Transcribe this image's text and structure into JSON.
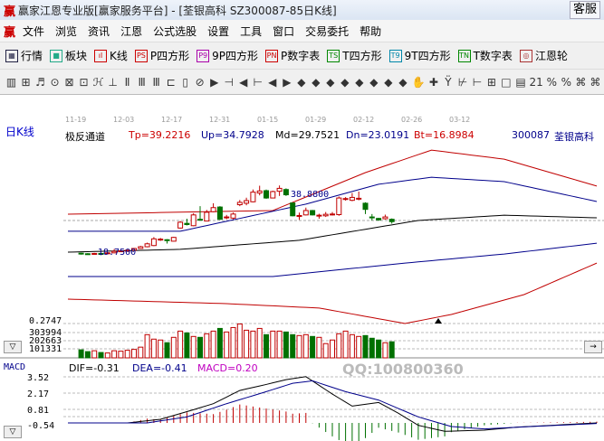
{
  "window": {
    "logo": "赢",
    "title": "赢家江恩专业版[赢家服务平台] - [荃银高科  SZ300087-85日K线]",
    "kefu": "客服"
  },
  "menu": [
    "文件",
    "浏览",
    "资讯",
    "江恩",
    "公式选股",
    "设置",
    "工具",
    "窗口",
    "交易委托",
    "帮助"
  ],
  "toolbar1": [
    {
      "icon": "market-icon",
      "glyph": "▦",
      "label": "行情",
      "color": "#224"
    },
    {
      "icon": "sector-icon",
      "glyph": "■",
      "label": "板块",
      "color": "#2a8"
    },
    {
      "icon": "kline-icon",
      "glyph": "ıl",
      "label": "K线",
      "color": "#c00"
    },
    {
      "icon": "ps-icon",
      "glyph": "PS",
      "label": "P四方形",
      "color": "#c00"
    },
    {
      "icon": "p9-icon",
      "glyph": "P9",
      "label": "9P四方形",
      "color": "#a0a"
    },
    {
      "icon": "pn-icon",
      "glyph": "PN",
      "label": "P数字表",
      "color": "#c00"
    },
    {
      "icon": "ts-icon",
      "glyph": "TS",
      "label": "T四方形",
      "color": "#080"
    },
    {
      "icon": "t9-icon",
      "glyph": "T9",
      "label": "9T四方形",
      "color": "#08a"
    },
    {
      "icon": "tn-icon",
      "glyph": "TN",
      "label": "T数字表",
      "color": "#080"
    },
    {
      "icon": "gann-wheel-icon",
      "glyph": "◎",
      "label": "江恩轮",
      "color": "#a33"
    }
  ],
  "toolbar2": [
    "▥",
    "⊞",
    "♬",
    "⊙",
    "⊠",
    "⊡",
    "ℋ",
    "⊥",
    "Ⅱ",
    "Ⅲ",
    "Ⅲ",
    "⊏",
    "▯",
    "⊘",
    "▶",
    "⊣",
    "◀",
    "⊢",
    "◀",
    "▶",
    "◆",
    "◆",
    "◆",
    "◆",
    "◆",
    "◆",
    "◆",
    "◆",
    "✋",
    "✚",
    "Ÿ",
    "⊬",
    "⊢",
    "⊞",
    "□",
    "▤",
    "21",
    "%",
    "%",
    "⌘",
    "⌘"
  ],
  "chart": {
    "period": "日K线",
    "dates": [
      "11-19",
      "12-03",
      "12-17",
      "12-31",
      "01-15",
      "01-29",
      "02-12",
      "02-26",
      "03-12"
    ],
    "indicator": {
      "name": "极反通道",
      "tp": "Tp=39.2216",
      "up": "Up=34.7928",
      "md": "Md=29.7521",
      "dn": "Dn=23.0191",
      "bt": "Bt=16.8984"
    },
    "code": "300087",
    "stock": "荃银高科",
    "high_label": "38.8800",
    "low_label": "18.7500",
    "volume_labels": [
      "0.2747",
      "303994",
      "202663",
      "101331"
    ],
    "macd": {
      "name": "MACD",
      "dif": "DIF=-0.31",
      "dea": "DEA=-0.41",
      "macd": "MACD=0.20",
      "ticks": [
        "3.52",
        "2.17",
        "0.81",
        "-0.54"
      ]
    },
    "watermark": "QQ:100800360",
    "colors": {
      "up": "#c00000",
      "down": "#007000",
      "tp": "#c00000",
      "up_band": "#00008b",
      "md": "#000000",
      "dn": "#00008b",
      "bt": "#c00000",
      "dif": "#000000",
      "dea": "#00008b",
      "macd_label": "#c000c0"
    }
  },
  "chart_data": {
    "type": "candlestick",
    "candles_ohlc": [
      [
        18.4,
        18.1,
        18.6,
        17.9
      ],
      [
        18.2,
        18.0,
        18.4,
        17.9
      ],
      [
        18.1,
        18.3,
        18.5,
        18.0
      ],
      [
        18.3,
        18.2,
        18.4,
        17.7
      ],
      [
        18.2,
        18.5,
        18.7,
        18.0
      ],
      [
        18.5,
        19.0,
        19.8,
        18.4
      ],
      [
        19.0,
        19.2,
        19.5,
        18.9
      ],
      [
        19.2,
        19.4,
        19.6,
        19.1
      ],
      [
        19.4,
        20.0,
        20.2,
        19.3
      ],
      [
        20.0,
        20.6,
        20.9,
        19.9
      ],
      [
        20.6,
        21.6,
        22.0,
        20.4
      ],
      [
        21.0,
        23.3,
        23.9,
        20.8
      ],
      [
        23.0,
        23.2,
        23.6,
        22.6
      ],
      [
        23.0,
        22.7,
        23.2,
        21.7
      ],
      [
        22.5,
        23.8,
        24.0,
        22.4
      ],
      [
        27.0,
        29.0,
        29.4,
        26.8
      ],
      [
        28.6,
        28.2,
        30.2,
        27.9
      ],
      [
        27.8,
        31.5,
        32.1,
        27.6
      ],
      [
        30.0,
        29.9,
        34.5,
        29.7
      ],
      [
        29.4,
        32.4,
        33.2,
        29.3
      ],
      [
        32.6,
        34.0,
        35.5,
        32.4
      ],
      [
        34.2,
        30.0,
        34.5,
        29.8
      ],
      [
        30.5,
        30.8,
        31.5,
        30.0
      ],
      [
        30.4,
        31.8,
        32.3,
        30.0
      ],
      [
        35.0,
        35.8,
        36.6,
        34.5
      ],
      [
        35.5,
        36.4,
        37.4,
        34.8
      ],
      [
        36.0,
        39.3,
        40.2,
        35.8
      ],
      [
        39.0,
        39.7,
        41.5,
        38.2
      ],
      [
        39.8,
        37.3,
        40.2,
        37.0
      ],
      [
        37.3,
        39.5,
        39.8,
        37.2
      ],
      [
        39.6,
        40.6,
        41.6,
        38.0
      ],
      [
        40.2,
        38.4,
        40.6,
        38.0
      ],
      [
        35.6,
        31.2,
        35.8,
        31.0
      ],
      [
        31.0,
        31.3,
        32.3,
        29.8
      ],
      [
        31.5,
        33.0,
        34.0,
        31.3
      ],
      [
        33.0,
        31.5,
        33.2,
        31.3
      ],
      [
        31.2,
        31.4,
        31.9,
        30.2
      ],
      [
        31.2,
        31.7,
        32.5,
        30.8
      ],
      [
        31.6,
        31.8,
        32.5,
        31.3
      ],
      [
        31.6,
        37.3,
        37.8,
        31.2
      ],
      [
        36.8,
        37.1,
        37.6,
        36.4
      ],
      [
        36.5,
        37.5,
        39.0,
        36.2
      ],
      [
        37.0,
        37.2,
        39.5,
        36.5
      ],
      [
        35.5,
        33.4,
        35.8,
        31.8
      ],
      [
        30.8,
        30.6,
        31.8,
        29.6
      ],
      [
        30.3,
        29.8,
        30.5,
        29.5
      ],
      [
        30.2,
        30.8,
        31.6,
        29.9
      ],
      [
        30.0,
        29.2,
        30.3,
        28.5
      ]
    ],
    "volume": [
      90000,
      70000,
      80000,
      60000,
      55000,
      80000,
      75000,
      85000,
      95000,
      120000,
      260000,
      210000,
      200000,
      170000,
      230000,
      300000,
      280000,
      240000,
      230000,
      270000,
      300000,
      330000,
      290000,
      340000,
      380000,
      310000,
      300000,
      330000,
      260000,
      300000,
      300000,
      290000,
      260000,
      250000,
      260000,
      240000,
      230000,
      160000,
      200000,
      270000,
      300000,
      260000,
      240000,
      250000,
      220000,
      200000,
      170000,
      180000
    ],
    "channel": {
      "Tp": [
        [
          0,
          31.75
        ],
        [
          31,
          33.0
        ],
        [
          45,
          46.0
        ],
        [
          55,
          53.7
        ],
        [
          66,
          50.6
        ],
        [
          80,
          41.4
        ]
      ],
      "Up": [
        [
          0,
          25.9
        ],
        [
          17,
          25.9
        ],
        [
          36,
          35.2
        ],
        [
          47,
          42.0
        ],
        [
          55,
          44.4
        ],
        [
          66,
          42.9
        ],
        [
          80,
          36.1
        ]
      ],
      "Md": [
        [
          0,
          18.75
        ],
        [
          17,
          19.7
        ],
        [
          35,
          22.8
        ],
        [
          53,
          29.6
        ],
        [
          66,
          31.4
        ],
        [
          80,
          30.5
        ]
      ],
      "Dn": [
        [
          0,
          10.4
        ],
        [
          31,
          10.4
        ],
        [
          51,
          15.0
        ],
        [
          66,
          18.1
        ],
        [
          80,
          21.8
        ]
      ],
      "Bt": [
        [
          0,
          2.65
        ],
        [
          24,
          1.1
        ],
        [
          38,
          -0.4
        ],
        [
          51,
          -5.7
        ],
        [
          58,
          -2.6
        ],
        [
          69,
          4.2
        ],
        [
          80,
          15.0
        ]
      ]
    },
    "dif": [
      [
        0,
        -0.3
      ],
      [
        9,
        -0.3
      ],
      [
        14,
        0.0
      ],
      [
        19,
        0.8
      ],
      [
        22,
        1.3
      ],
      [
        26,
        2.4
      ],
      [
        30,
        2.9
      ],
      [
        33,
        3.3
      ],
      [
        36,
        3.55
      ],
      [
        40,
        2.1
      ],
      [
        43,
        1.1
      ],
      [
        47,
        1.4
      ],
      [
        50,
        0.5
      ],
      [
        53,
        -0.5
      ],
      [
        57,
        -1.0
      ],
      [
        63,
        -0.9
      ],
      [
        68,
        -0.65
      ],
      [
        80,
        -0.3
      ]
    ],
    "dea": [
      [
        0,
        -0.3
      ],
      [
        12,
        -0.3
      ],
      [
        18,
        0.2
      ],
      [
        24,
        1.3
      ],
      [
        30,
        2.3
      ],
      [
        34,
        3.0
      ],
      [
        37,
        3.2
      ],
      [
        42,
        2.3
      ],
      [
        47,
        1.6
      ],
      [
        53,
        0.2
      ],
      [
        58,
        -0.6
      ],
      [
        63,
        -0.8
      ],
      [
        70,
        -0.6
      ],
      [
        80,
        -0.35
      ]
    ]
  }
}
